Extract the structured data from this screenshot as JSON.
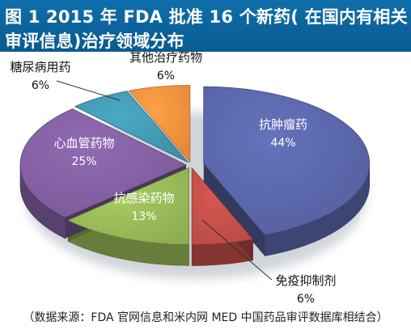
{
  "header": {
    "title_line1": "图 1  2015 年 FDA 批准 16 个新药( 在国内有相关",
    "title_line2": "审评信息)治疗领域分布"
  },
  "chart_data": {
    "type": "pie",
    "title": "图 1  2015 年 FDA 批准 16 个新药( 在国内有相关审评信息)治疗领域分布",
    "categories": [
      "抗肿瘤药",
      "免疫抑制剂",
      "抗感染药物",
      "心血管药物",
      "糖尿病用药",
      "其他治疗药物"
    ],
    "values": [
      44,
      6,
      13,
      25,
      6,
      6
    ],
    "value_labels": [
      "44%",
      "6%",
      "13%",
      "25%",
      "6%",
      "6%"
    ],
    "colors": [
      "#55609f",
      "#b84a46",
      "#8fae52",
      "#7a5a98",
      "#3f8fa6",
      "#e3893a"
    ],
    "legend": "none",
    "label_style": "callouts"
  },
  "footer": {
    "source": "（数据来源：FDA 官网信息和米内网 MED 中国药品审评数据库相结合）"
  }
}
